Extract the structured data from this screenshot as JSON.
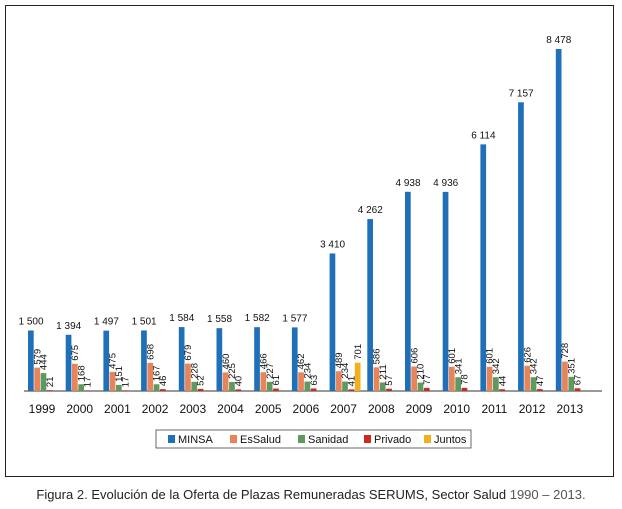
{
  "caption": {
    "label": "Figura",
    "number": "2.",
    "text": "Evolución de la Oferta de Plazas Remuneradas SERUMS, Sector Salud",
    "years": "1990 – 2013."
  },
  "chart_data": {
    "type": "bar",
    "categories": [
      "1999",
      "2000",
      "2001",
      "2002",
      "2003",
      "2004",
      "2005",
      "2006",
      "2007",
      "2008",
      "2009",
      "2010",
      "2011",
      "2012",
      "2013"
    ],
    "series": [
      {
        "name": "MINSA",
        "color": "#1f6fb9",
        "values": [
          1500,
          1394,
          1497,
          1501,
          1584,
          1558,
          1582,
          1577,
          3410,
          4262,
          4938,
          4936,
          6114,
          7157,
          8478
        ],
        "labels": [
          "1 500",
          "1 394",
          "1 497",
          "1 501",
          "1 584",
          "1 558",
          "1 582",
          "1 577",
          "3 410",
          "4 262",
          "4 938",
          "4 936",
          "6 114",
          "7 157",
          "8 478"
        ]
      },
      {
        "name": "EsSalud",
        "color": "#e8845a",
        "values": [
          579,
          675,
          475,
          698,
          679,
          460,
          466,
          462,
          489,
          586,
          606,
          601,
          601,
          626,
          728
        ],
        "labels": [
          "579",
          "675",
          "475",
          "698",
          "679",
          "460",
          "466",
          "462",
          "489",
          "586",
          "606",
          "601",
          "601",
          "626",
          "728"
        ]
      },
      {
        "name": "Sanidad",
        "color": "#5e9a5e",
        "values": [
          444,
          168,
          151,
          167,
          228,
          225,
          227,
          234,
          234,
          211,
          210,
          341,
          342,
          342,
          351
        ],
        "labels": [
          "444",
          "168",
          "151",
          "167",
          "228",
          "225",
          "227",
          "234",
          "234",
          "211",
          "210",
          "341",
          "342",
          "342",
          "351"
        ]
      },
      {
        "name": "Privado",
        "color": "#cc2a1d",
        "values": [
          21,
          17,
          17,
          46,
          52,
          40,
          61,
          63,
          41,
          57,
          77,
          78,
          44,
          47,
          67
        ],
        "labels": [
          "21",
          "17",
          "17",
          "46",
          "52",
          "40",
          "61",
          "63",
          "41",
          "57",
          "77",
          "78",
          "44",
          "47",
          "67"
        ]
      },
      {
        "name": "Juntos",
        "color": "#f2b01d",
        "values": [
          0,
          0,
          0,
          0,
          0,
          0,
          0,
          0,
          701,
          0,
          0,
          0,
          0,
          0,
          0
        ],
        "labels": [
          "",
          "",
          "",
          "",
          "",
          "",
          "",
          "",
          "701",
          "",
          "",
          "",
          "",
          "",
          ""
        ]
      }
    ],
    "legend_position": "bottom",
    "grid": false,
    "ylim": [
      0,
      8800
    ]
  }
}
